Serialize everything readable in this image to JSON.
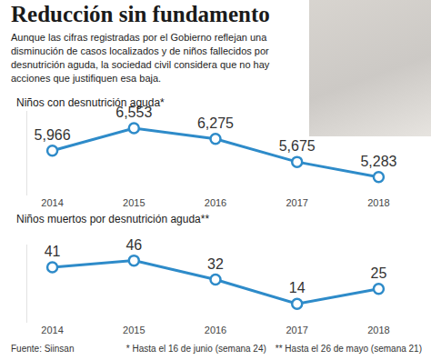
{
  "title": "Reducción sin fundamento",
  "subtitle": "Aunque las cifras registradas por el Gobierno reflejan una disminución de casos localizados y de niños fallecidos por desnutrición aguda, la sociedad civil considera que no hay acciones que justifiquen esa baja.",
  "source": "Fuente: Siinsan",
  "notes": [
    "* Hasta el 16 de junio (semana 24)",
    "** Hasta el 26 de mayo (semana 21)"
  ],
  "chart_data": [
    {
      "type": "line",
      "title": "Niños con desnutrición aguda*",
      "categories": [
        "2014",
        "2015",
        "2016",
        "2017",
        "2018"
      ],
      "values": [
        5966,
        6553,
        6275,
        5675,
        5283
      ],
      "value_labels": [
        "5,966",
        "6,553",
        "6,275",
        "5,675",
        "5,283"
      ],
      "color": "#2e8bc9",
      "marker": "circle",
      "line_style": "solid",
      "data_labels": true,
      "tick_labels": "x",
      "grid": false,
      "ylim": [
        4800,
        7000
      ]
    },
    {
      "type": "line",
      "title": "Niños muertos por desnutrición aguda**",
      "categories": [
        "2014",
        "2015",
        "2016",
        "2017",
        "2018"
      ],
      "values": [
        41,
        46,
        32,
        14,
        25
      ],
      "color": "#2e8bc9",
      "marker": "circle",
      "line_style": "solid",
      "data_labels": true,
      "tick_labels": "x",
      "grid": false,
      "ylim": [
        0,
        58
      ]
    }
  ]
}
